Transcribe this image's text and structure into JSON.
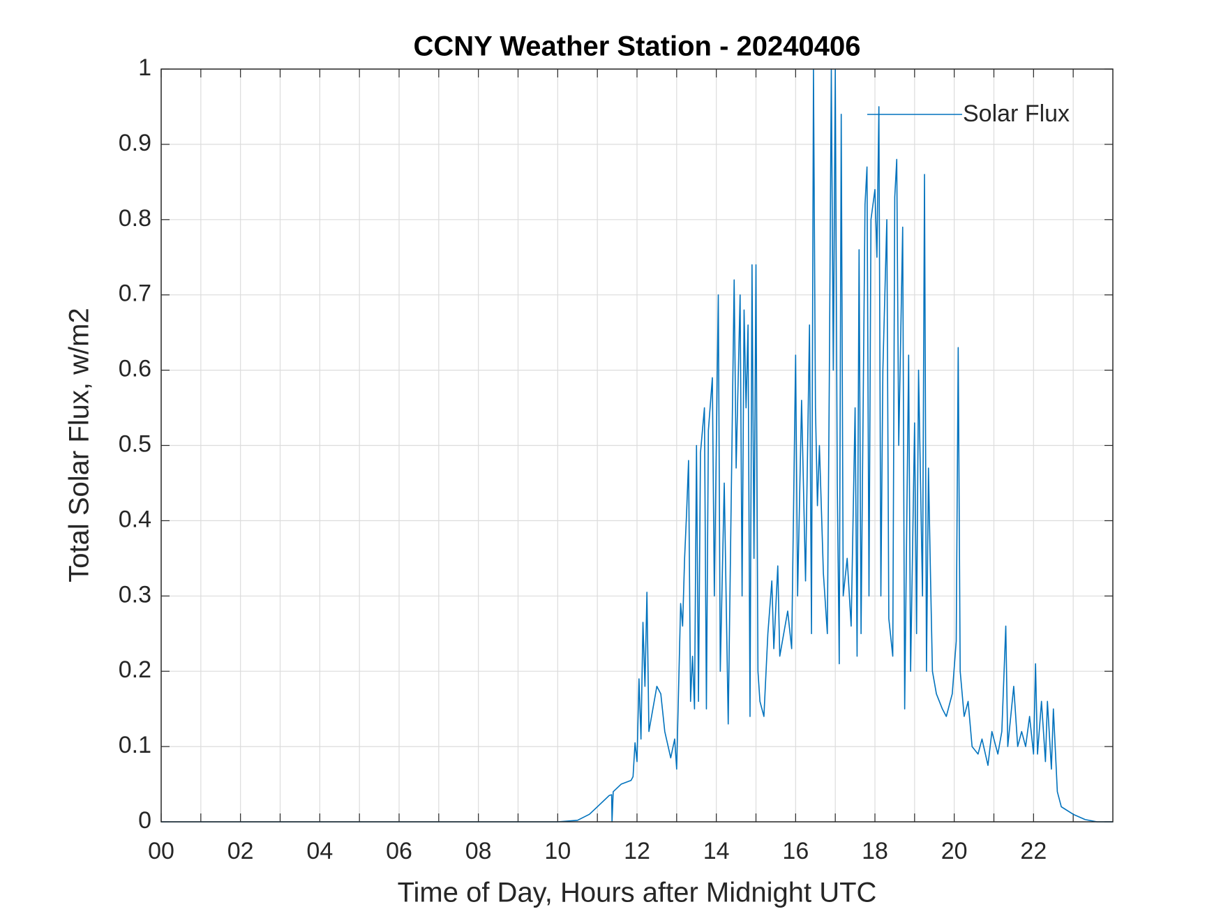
{
  "chart_data": {
    "type": "line",
    "title": "CCNY Weather Station - 20240406",
    "xlabel": "Time of Day, Hours after Midnight UTC",
    "ylabel": "Total Solar Flux, w/m2",
    "xlim": [
      0,
      24
    ],
    "ylim": [
      0,
      1
    ],
    "xticks": [
      {
        "value": 0,
        "label": "00"
      },
      {
        "value": 2,
        "label": "02"
      },
      {
        "value": 4,
        "label": "04"
      },
      {
        "value": 6,
        "label": "06"
      },
      {
        "value": 8,
        "label": "08"
      },
      {
        "value": 10,
        "label": "10"
      },
      {
        "value": 12,
        "label": "12"
      },
      {
        "value": 14,
        "label": "14"
      },
      {
        "value": 16,
        "label": "16"
      },
      {
        "value": 18,
        "label": "18"
      },
      {
        "value": 20,
        "label": "20"
      },
      {
        "value": 22,
        "label": "22"
      }
    ],
    "xminorticks": [
      1,
      3,
      5,
      7,
      9,
      11,
      13,
      15,
      17,
      19,
      21,
      23
    ],
    "yticks": [
      0,
      0.1,
      0.2,
      0.3,
      0.4,
      0.5,
      0.6,
      0.7,
      0.8,
      0.9,
      1
    ],
    "grid": true,
    "legend": "northeast",
    "x": [
      0,
      10,
      10.5,
      10.8,
      11.0,
      11.3,
      11.36,
      11.37,
      11.4,
      11.6,
      11.85,
      11.9,
      11.95,
      12.0,
      12.05,
      12.1,
      12.15,
      12.2,
      12.25,
      12.3,
      12.4,
      12.5,
      12.6,
      12.7,
      12.85,
      12.95,
      13.0,
      13.1,
      13.15,
      13.2,
      13.25,
      13.3,
      13.35,
      13.4,
      13.45,
      13.5,
      13.55,
      13.6,
      13.7,
      13.75,
      13.8,
      13.9,
      13.95,
      14.05,
      14.1,
      14.2,
      14.3,
      14.45,
      14.5,
      14.6,
      14.65,
      14.7,
      14.75,
      14.8,
      14.85,
      14.9,
      14.95,
      15.0,
      15.05,
      15.1,
      15.2,
      15.3,
      15.4,
      15.45,
      15.55,
      15.6,
      15.7,
      15.8,
      15.9,
      16.0,
      16.05,
      16.15,
      16.25,
      16.35,
      16.4,
      16.45,
      16.5,
      16.55,
      16.6,
      16.7,
      16.8,
      16.85,
      16.9,
      16.95,
      17.0,
      17.05,
      17.1,
      17.15,
      17.2,
      17.3,
      17.4,
      17.5,
      17.55,
      17.6,
      17.65,
      17.75,
      17.8,
      17.85,
      17.9,
      18.0,
      18.05,
      18.1,
      18.15,
      18.2,
      18.3,
      18.35,
      18.45,
      18.5,
      18.55,
      18.6,
      18.7,
      18.75,
      18.85,
      18.9,
      19.0,
      19.05,
      19.1,
      19.2,
      19.25,
      19.3,
      19.35,
      19.4,
      19.45,
      19.55,
      19.7,
      19.8,
      19.95,
      20.05,
      20.1,
      20.15,
      20.25,
      20.35,
      20.45,
      20.6,
      20.7,
      20.85,
      20.95,
      21.1,
      21.2,
      21.3,
      21.35,
      21.5,
      21.6,
      21.7,
      21.8,
      21.9,
      22.0,
      22.05,
      22.1,
      22.2,
      22.3,
      22.35,
      22.45,
      22.5,
      22.6,
      22.7,
      23.0,
      23.3,
      23.6,
      24.0
    ],
    "series": [
      {
        "name": "Solar Flux",
        "color": "#0072bd",
        "values": [
          0,
          0,
          0.002,
          0.01,
          0.02,
          0.035,
          0.036,
          0,
          0.04,
          0.05,
          0.055,
          0.06,
          0.105,
          0.08,
          0.19,
          0.11,
          0.265,
          0.18,
          0.305,
          0.12,
          0.15,
          0.18,
          0.17,
          0.12,
          0.085,
          0.11,
          0.07,
          0.29,
          0.26,
          0.35,
          0.41,
          0.48,
          0.16,
          0.22,
          0.15,
          0.5,
          0.16,
          0.49,
          0.55,
          0.15,
          0.52,
          0.59,
          0.3,
          0.7,
          0.2,
          0.45,
          0.13,
          0.72,
          0.47,
          0.7,
          0.3,
          0.68,
          0.55,
          0.66,
          0.14,
          0.74,
          0.35,
          0.74,
          0.2,
          0.16,
          0.14,
          0.25,
          0.32,
          0.23,
          0.34,
          0.22,
          0.25,
          0.28,
          0.23,
          0.62,
          0.3,
          0.56,
          0.32,
          0.66,
          0.25,
          1.0,
          0.55,
          0.42,
          0.5,
          0.33,
          0.25,
          0.59,
          1.0,
          0.6,
          1.0,
          0.45,
          0.21,
          0.94,
          0.3,
          0.35,
          0.26,
          0.55,
          0.22,
          0.76,
          0.25,
          0.82,
          0.87,
          0.3,
          0.8,
          0.84,
          0.75,
          0.95,
          0.3,
          0.6,
          0.8,
          0.27,
          0.22,
          0.83,
          0.88,
          0.5,
          0.79,
          0.15,
          0.62,
          0.2,
          0.53,
          0.25,
          0.6,
          0.3,
          0.86,
          0.2,
          0.47,
          0.33,
          0.2,
          0.17,
          0.15,
          0.14,
          0.17,
          0.24,
          0.63,
          0.2,
          0.14,
          0.16,
          0.1,
          0.09,
          0.11,
          0.075,
          0.12,
          0.09,
          0.12,
          0.26,
          0.1,
          0.18,
          0.1,
          0.12,
          0.1,
          0.14,
          0.09,
          0.21,
          0.09,
          0.16,
          0.08,
          0.16,
          0.07,
          0.15,
          0.04,
          0.02,
          0.01,
          0.003,
          0,
          0
        ]
      }
    ]
  }
}
